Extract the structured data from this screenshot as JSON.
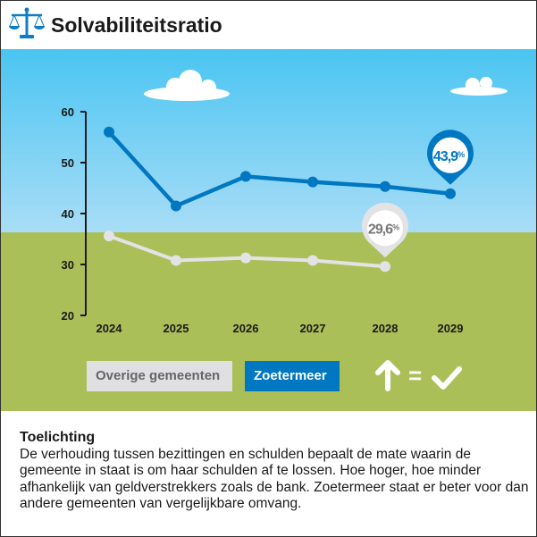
{
  "header": {
    "title": "Solvabiliteitsratio",
    "icon": "scale-icon"
  },
  "colors": {
    "zoetermeer": "#0077c1",
    "other": "#e0e0e2",
    "sky": "#4ac5f2",
    "grass": "#abbf59"
  },
  "chart_data": {
    "type": "line",
    "title": "Solvabiliteitsratio",
    "x": [
      "2024",
      "2025",
      "2026",
      "2027",
      "2028",
      "2029"
    ],
    "ylim": [
      20,
      60
    ],
    "yticks": [
      60,
      50,
      40,
      30,
      20
    ],
    "series": [
      {
        "name": "Zoetermeer",
        "values": [
          56.0,
          41.5,
          47.3,
          46.2,
          45.3,
          43.9
        ],
        "label": "43,9",
        "label_unit": "%"
      },
      {
        "name": "Overige gemeenten",
        "values": [
          35.6,
          30.8,
          31.3,
          30.8,
          29.6,
          null
        ],
        "label": "29,6",
        "label_unit": "%"
      }
    ]
  },
  "legend": {
    "other": "Overige gemeenten",
    "zoetermeer": "Zoetermeer"
  },
  "verdict": {
    "arrow": "arrow-up-icon",
    "equals": "=",
    "check": "checkmark-icon"
  },
  "note": {
    "title": "Toelichting",
    "text": "De verhouding tussen bezittingen en schulden bepaalt de mate waarin de gemeente in staat is om haar schulden af te lossen. Hoe hoger, hoe minder afhankelijk van geldverstrekkers zoals de bank. Zoetermeer staat er beter voor dan andere gemeenten van vergelijkbare omvang."
  }
}
